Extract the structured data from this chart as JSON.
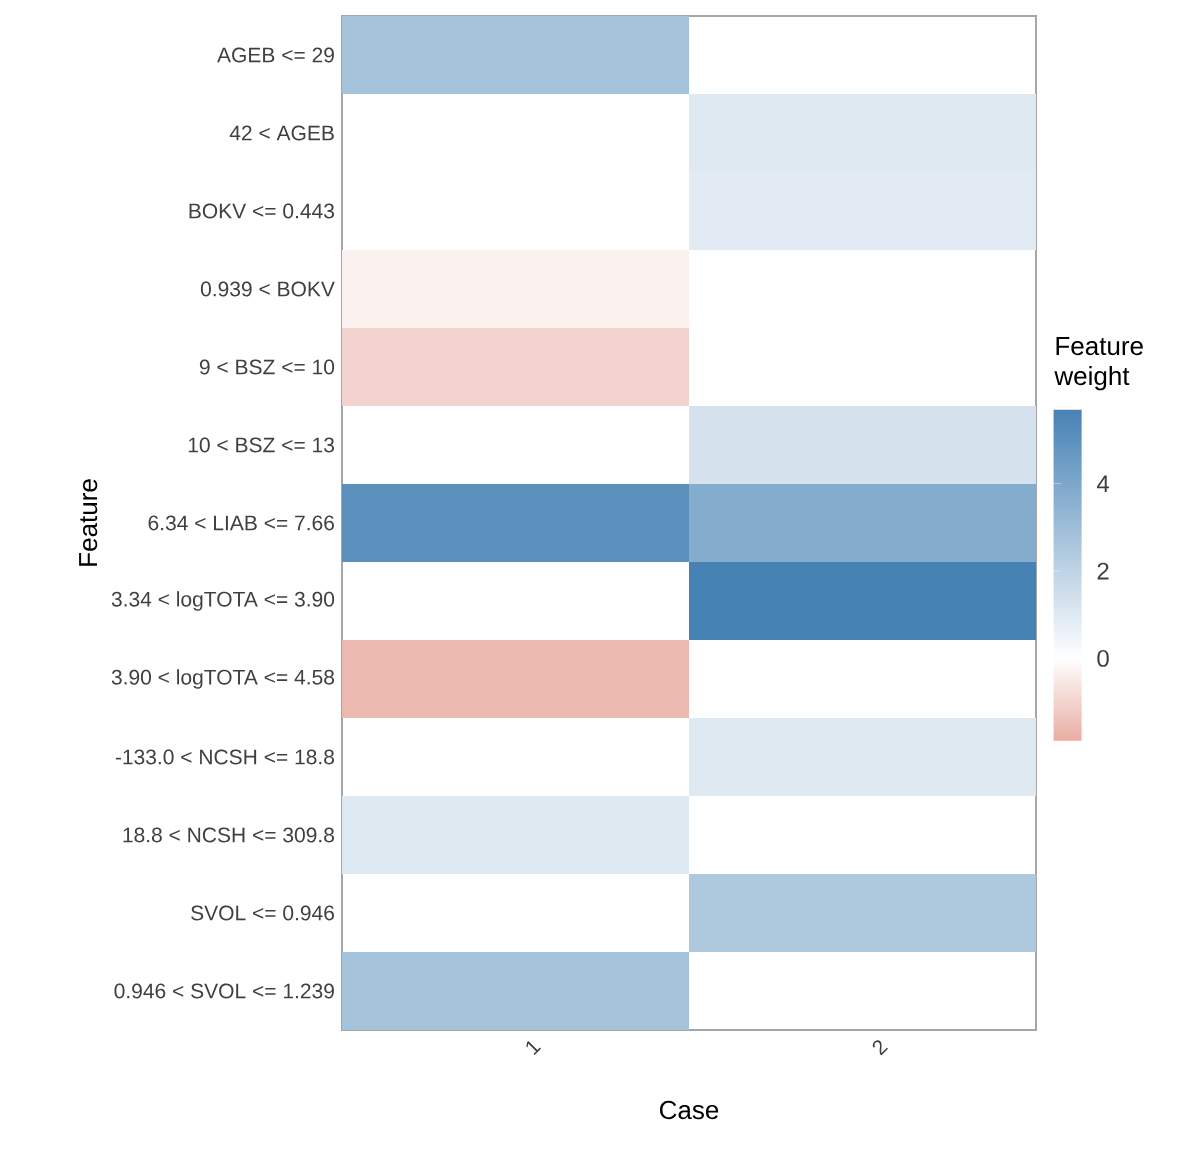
{
  "chart_data": {
    "type": "heatmap",
    "xlabel": "Case",
    "ylabel": "Feature",
    "clabel": "Feature weight",
    "categories": [
      "1",
      "2"
    ],
    "y_categories": [
      "AGEB <= 29",
      "42 < AGEB",
      "BOKV <= 0.443",
      "0.939 < BOKV",
      "9 < BSZ <= 10",
      "10 < BSZ <= 13",
      "6.34 < LIAB <= 7.66",
      "3.34 < logTOTA <= 3.90",
      "3.90 < logTOTA <= 4.58",
      "-133.0 < NCSH <= 18.8",
      "18.8 < NCSH <= 309.8",
      "SVOL <= 0.946",
      "0.946 < SVOL <= 1.239"
    ],
    "cells": [
      [
        2.8,
        null
      ],
      [
        null,
        1.0
      ],
      [
        null,
        0.9
      ],
      [
        -0.3,
        null
      ],
      [
        -1.0,
        null
      ],
      [
        null,
        1.3
      ],
      [
        5.0,
        3.8
      ],
      [
        null,
        5.7
      ],
      [
        -1.6,
        null
      ],
      [
        null,
        1.0
      ],
      [
        1.0,
        null
      ],
      [
        null,
        2.5
      ],
      [
        2.8,
        null
      ]
    ],
    "clim": [
      -1.9,
      5.7
    ],
    "cticks": [
      0,
      2,
      4
    ]
  }
}
